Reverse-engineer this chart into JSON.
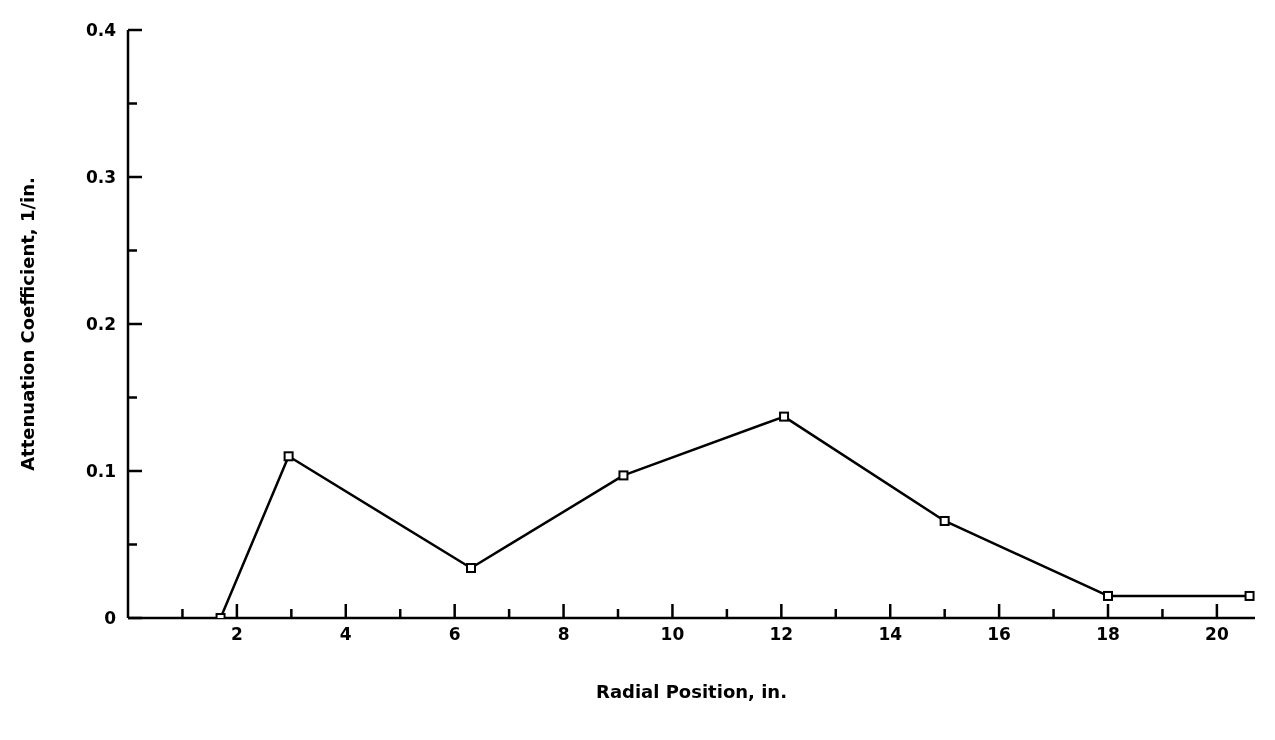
{
  "chart_data": {
    "type": "line",
    "xlabel": "Radial Position, in.",
    "ylabel": "Attenuation Coefficient, 1/in.",
    "x": [
      1.7,
      2.95,
      6.3,
      9.1,
      12.05,
      15,
      18,
      20.6
    ],
    "values": [
      0,
      0.11,
      0.034,
      0.097,
      0.137,
      0.066,
      0.015,
      0.015
    ],
    "color": "#000000",
    "marker": "square",
    "line_style": "solid",
    "xlim": [
      0,
      20.7
    ],
    "xticks": [
      {
        "value": 1,
        "label": null
      },
      2,
      {
        "value": 3,
        "label": null
      },
      4,
      {
        "value": 5,
        "label": null
      },
      6,
      {
        "value": 7,
        "label": null
      },
      8,
      {
        "value": 9,
        "label": null
      },
      10,
      {
        "value": 11,
        "label": null
      },
      12,
      {
        "value": 13,
        "label": null
      },
      14,
      {
        "value": 15,
        "label": null
      },
      16,
      {
        "value": 17,
        "label": null
      },
      18,
      {
        "value": 19,
        "label": null
      },
      20
    ],
    "ylim": [
      0,
      0.4
    ],
    "yticks": [
      0,
      {
        "value": 0.05,
        "label": null
      },
      0.1,
      {
        "value": 0.15,
        "label": null
      },
      0.2,
      {
        "value": 0.25,
        "label": null
      },
      0.3,
      {
        "value": 0.35,
        "label": null
      },
      0.4
    ],
    "grid": false,
    "legend": false
  }
}
